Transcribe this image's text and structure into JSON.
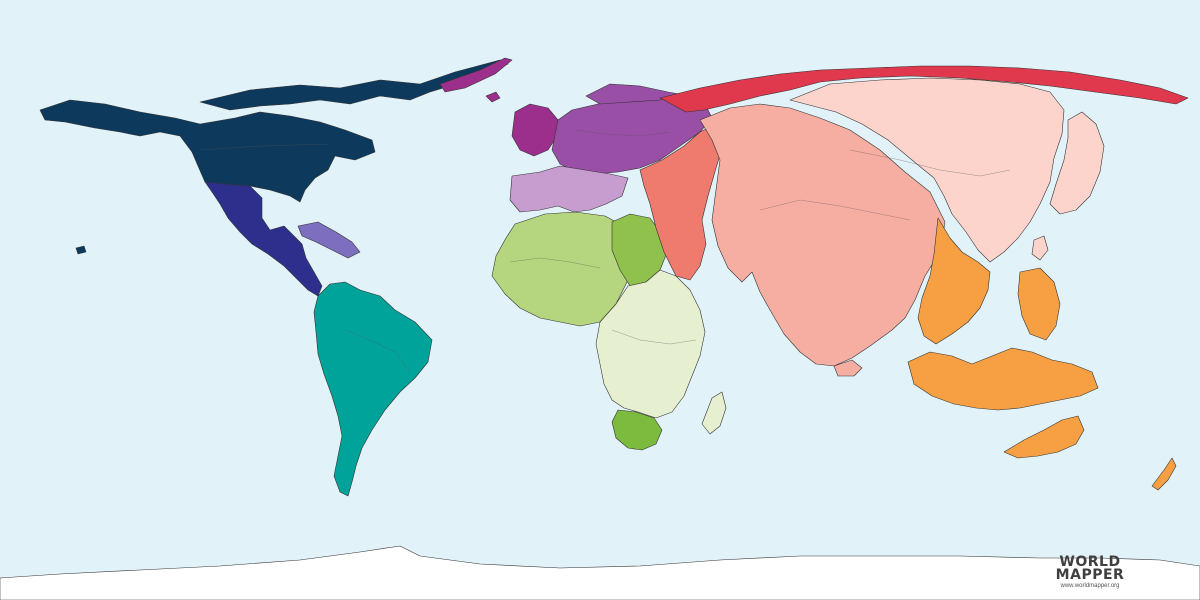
{
  "map": {
    "background": "#e2f2f9",
    "regions": [
      {
        "name": "north-america-usa-canada",
        "color": "#0d3a5c"
      },
      {
        "name": "central-america-mexico",
        "color": "#2e2e8c"
      },
      {
        "name": "caribbean",
        "color": "#7d6ebf"
      },
      {
        "name": "south-america",
        "color": "#00a39a"
      },
      {
        "name": "western-europe-uk",
        "color": "#9c2f8c"
      },
      {
        "name": "northern-eastern-europe",
        "color": "#9a4fa6"
      },
      {
        "name": "southern-europe",
        "color": "#c79ccf"
      },
      {
        "name": "north-africa",
        "color": "#b5d67e"
      },
      {
        "name": "northeast-africa",
        "color": "#8fc14c"
      },
      {
        "name": "central-east-africa",
        "color": "#e6f0d0"
      },
      {
        "name": "southern-africa",
        "color": "#7cbb3d"
      },
      {
        "name": "middle-east",
        "color": "#ef7a6e"
      },
      {
        "name": "south-asia",
        "color": "#f7aea2"
      },
      {
        "name": "east-asia",
        "color": "#fcd4cc"
      },
      {
        "name": "russia-north-asia",
        "color": "#e0384c"
      },
      {
        "name": "southeast-asia-oceania",
        "color": "#f7a043"
      },
      {
        "name": "antarctica",
        "color": "#ffffff"
      }
    ]
  },
  "logo": {
    "line1": "WORLD",
    "line2": "MAPPER",
    "url": "www.worldmapper.org"
  }
}
